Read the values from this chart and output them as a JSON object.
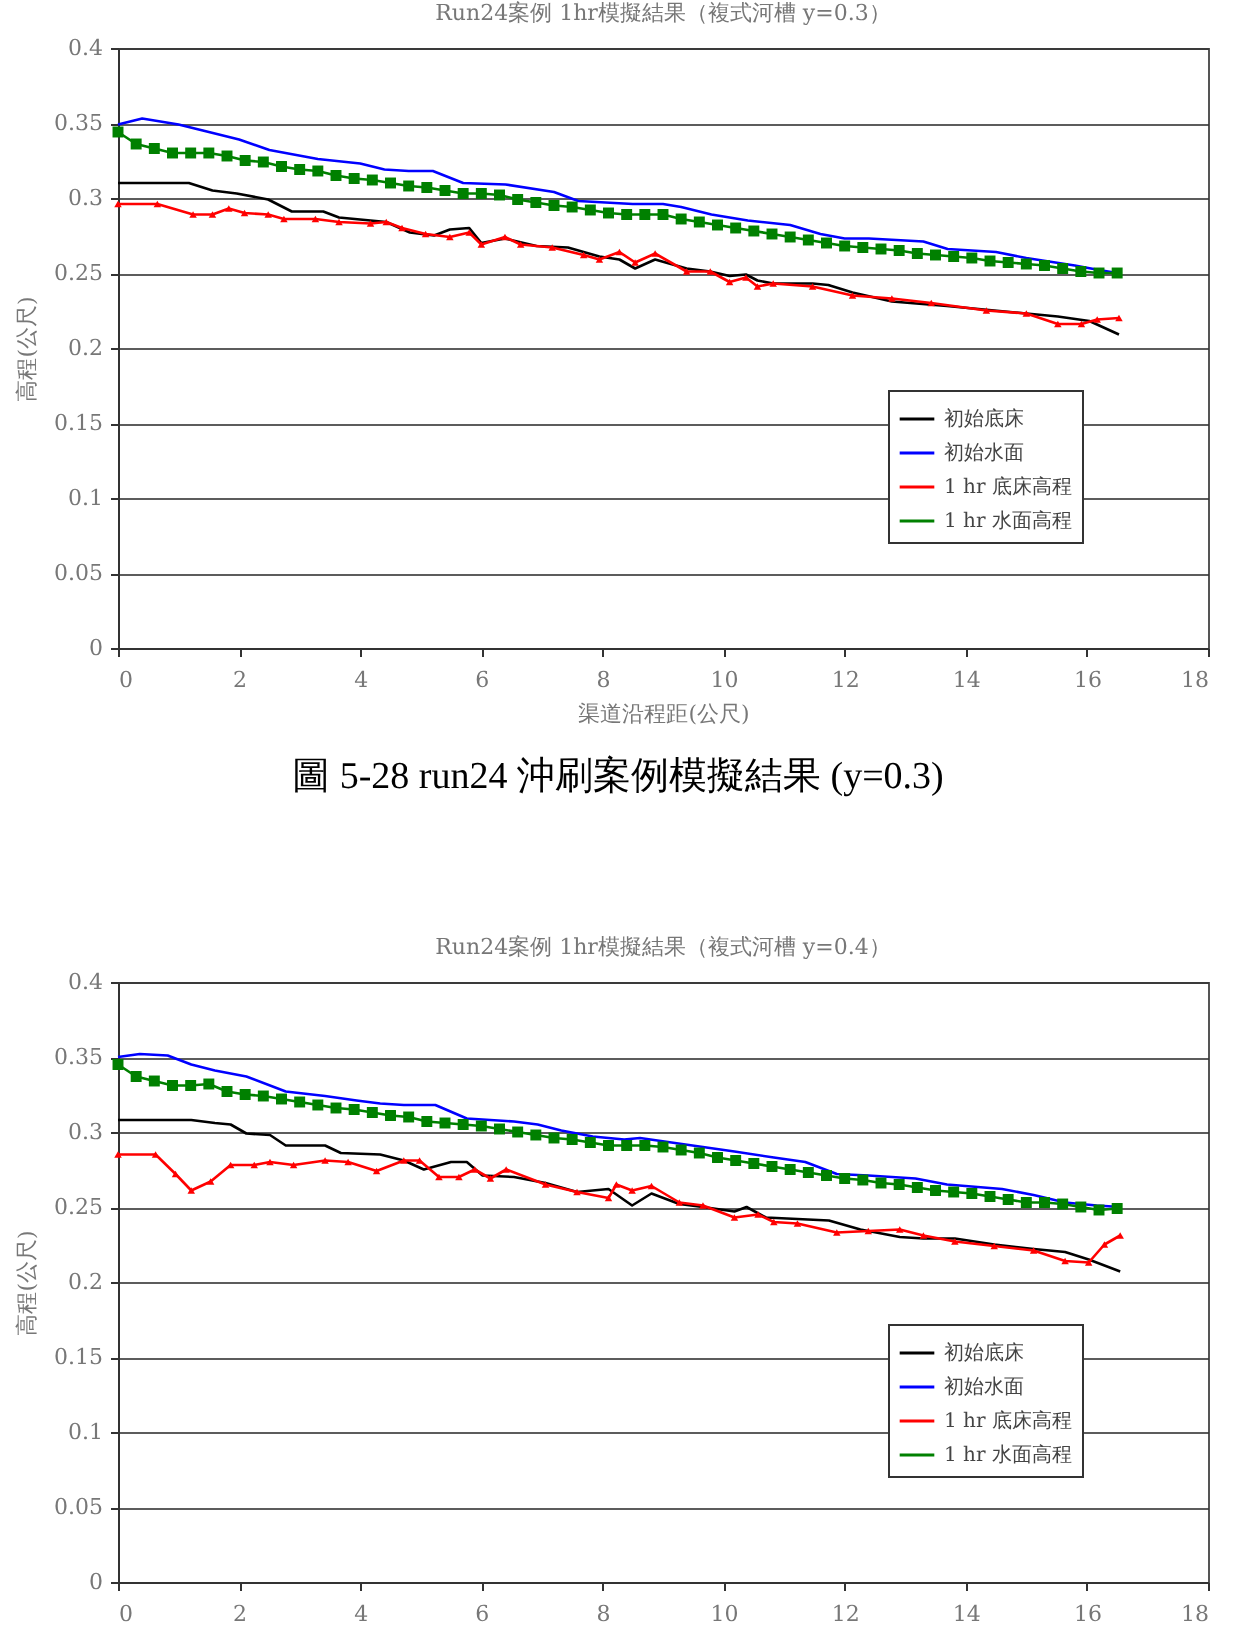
{
  "chart_data": [
    {
      "type": "line",
      "title": "Run24案例 1hr模擬結果（複式河槽 y=0.3）",
      "xlabel": "渠道沿程距(公尺)",
      "ylabel": "高程(公尺)",
      "annotations": [
        "圖 5-28 run24 沖刷案例模擬結果 (y=0.3)"
      ],
      "xlim": [
        0,
        18
      ],
      "xticks": [
        0,
        2,
        4,
        6,
        8,
        10,
        12,
        14,
        16,
        18
      ],
      "ylim": [
        0,
        0.4
      ],
      "yticks": [
        0,
        0.05,
        0.1,
        0.15,
        0.2,
        0.25,
        0.3,
        0.35,
        0.4
      ],
      "grid": "y",
      "legend": "bottom right",
      "series": [
        {
          "name": "初始底床",
          "color": "#000000",
          "marker": "none",
          "x": [
            0,
            1.17,
            1.56,
            1.96,
            2.48,
            2.87,
            3.39,
            3.65,
            4.17,
            4.43,
            4.82,
            5.22,
            5.48,
            5.8,
            6.0,
            6.39,
            6.91,
            7.43,
            7.95,
            8.28,
            8.54,
            8.87,
            9.39,
            9.78,
            10.1,
            10.37,
            10.56,
            10.82,
            11.47,
            11.73,
            12.13,
            12.78,
            13.69,
            14.47,
            15.0,
            15.52,
            16.04,
            16.53
          ],
          "values": [
            0.31,
            0.31,
            0.305,
            0.303,
            0.299,
            0.291,
            0.291,
            0.287,
            0.285,
            0.284,
            0.277,
            0.275,
            0.279,
            0.28,
            0.27,
            0.273,
            0.268,
            0.267,
            0.261,
            0.259,
            0.253,
            0.259,
            0.253,
            0.251,
            0.248,
            0.249,
            0.245,
            0.243,
            0.243,
            0.242,
            0.237,
            0.231,
            0.228,
            0.225,
            0.223,
            0.221,
            0.218,
            0.209
          ]
        },
        {
          "name": "初始水面",
          "color": "#0000ff",
          "marker": "none",
          "x": [
            0,
            0.4,
            1.0,
            1.4,
            2.0,
            2.5,
            3.3,
            4.0,
            4.4,
            4.8,
            5.2,
            5.7,
            6.4,
            7.2,
            7.6,
            8.5,
            9.0,
            9.3,
            9.8,
            10.4,
            11.1,
            11.6,
            12.0,
            12.4,
            13.3,
            13.7,
            14.5,
            15.0,
            15.8,
            16.2,
            16.5
          ],
          "values": [
            0.349,
            0.353,
            0.349,
            0.345,
            0.339,
            0.332,
            0.326,
            0.323,
            0.319,
            0.318,
            0.318,
            0.31,
            0.309,
            0.304,
            0.298,
            0.296,
            0.296,
            0.294,
            0.289,
            0.285,
            0.282,
            0.276,
            0.273,
            0.273,
            0.271,
            0.266,
            0.264,
            0.26,
            0.255,
            0.252,
            0.25
          ]
        },
        {
          "name": "1 hr 底床高程",
          "color": "#ff0000",
          "marker": "triangle",
          "x": [
            0,
            0.65,
            1.24,
            1.56,
            1.83,
            2.09,
            2.48,
            2.74,
            3.26,
            3.65,
            4.17,
            4.43,
            4.69,
            5.08,
            5.48,
            5.8,
            6.0,
            6.39,
            6.65,
            7.17,
            7.69,
            7.95,
            8.28,
            8.54,
            8.87,
            9.39,
            9.78,
            10.1,
            10.37,
            10.56,
            10.82,
            11.47,
            12.13,
            12.78,
            13.43,
            14.34,
            15.0,
            15.52,
            15.91,
            16.17,
            16.53
          ],
          "values": [
            0.296,
            0.296,
            0.289,
            0.289,
            0.293,
            0.29,
            0.289,
            0.286,
            0.286,
            0.284,
            0.283,
            0.284,
            0.28,
            0.276,
            0.274,
            0.277,
            0.269,
            0.274,
            0.269,
            0.267,
            0.262,
            0.259,
            0.264,
            0.257,
            0.263,
            0.251,
            0.251,
            0.244,
            0.247,
            0.241,
            0.243,
            0.241,
            0.235,
            0.233,
            0.23,
            0.225,
            0.223,
            0.216,
            0.216,
            0.219,
            0.22
          ]
        },
        {
          "name": "1 hr 水面高程",
          "color": "#008000",
          "marker": "square",
          "x": [
            0,
            0.3,
            0.6,
            0.9,
            1.2,
            1.5,
            1.8,
            2.1,
            2.4,
            2.7,
            3.0,
            3.3,
            3.6,
            3.9,
            4.2,
            4.5,
            4.8,
            5.1,
            5.4,
            5.7,
            6.0,
            6.3,
            6.6,
            6.9,
            7.2,
            7.5,
            7.8,
            8.1,
            8.4,
            8.7,
            9.0,
            9.3,
            9.6,
            9.9,
            10.2,
            10.5,
            10.8,
            11.1,
            11.4,
            11.7,
            12.0,
            12.3,
            12.6,
            12.9,
            13.2,
            13.5,
            13.8,
            14.1,
            14.4,
            14.7,
            15.0,
            15.3,
            15.6,
            15.9,
            16.2,
            16.5
          ],
          "values": [
            0.344,
            0.336,
            0.333,
            0.33,
            0.33,
            0.33,
            0.328,
            0.325,
            0.324,
            0.321,
            0.319,
            0.318,
            0.315,
            0.313,
            0.312,
            0.31,
            0.308,
            0.307,
            0.305,
            0.303,
            0.303,
            0.302,
            0.299,
            0.297,
            0.295,
            0.294,
            0.292,
            0.29,
            0.289,
            0.289,
            0.289,
            0.286,
            0.284,
            0.282,
            0.28,
            0.278,
            0.276,
            0.274,
            0.272,
            0.27,
            0.268,
            0.267,
            0.266,
            0.265,
            0.263,
            0.262,
            0.261,
            0.26,
            0.258,
            0.257,
            0.256,
            0.255,
            0.253,
            0.251,
            0.25,
            0.25
          ]
        }
      ]
    },
    {
      "type": "line",
      "title": "Run24案例 1hr模擬結果（複式河槽 y=0.4）",
      "ylabel": "高程(公尺)",
      "xlim": [
        0,
        18
      ],
      "xticks": [
        0,
        2,
        4,
        6,
        8,
        10,
        12,
        14,
        16,
        18
      ],
      "ylim": [
        0,
        0.4
      ],
      "yticks": [
        0,
        0.05,
        0.1,
        0.15,
        0.2,
        0.25,
        0.3,
        0.35,
        0.4
      ],
      "grid": "y",
      "legend": "bottom right",
      "series": [
        {
          "name": "初始底床",
          "color": "#000000",
          "marker": "none",
          "x": [
            0,
            1.21,
            1.6,
            1.86,
            2.12,
            2.51,
            2.77,
            3.42,
            3.68,
            4.33,
            4.72,
            5.05,
            5.5,
            5.76,
            6.02,
            6.54,
            7.06,
            7.58,
            8.1,
            8.49,
            8.81,
            9.27,
            9.66,
            10.18,
            10.38,
            10.7,
            11.22,
            11.74,
            12.26,
            12.91,
            13.3,
            13.82,
            14.47,
            15.12,
            15.64,
            16.03,
            16.55
          ],
          "values": [
            0.308,
            0.308,
            0.306,
            0.305,
            0.299,
            0.298,
            0.291,
            0.291,
            0.286,
            0.285,
            0.281,
            0.275,
            0.28,
            0.28,
            0.271,
            0.27,
            0.266,
            0.26,
            0.262,
            0.251,
            0.259,
            0.252,
            0.25,
            0.247,
            0.25,
            0.243,
            0.242,
            0.241,
            0.235,
            0.23,
            0.229,
            0.229,
            0.225,
            0.222,
            0.22,
            0.215,
            0.207
          ]
        },
        {
          "name": "初始水面",
          "color": "#0000ff",
          "marker": "none",
          "x": [
            0,
            0.36,
            0.82,
            1.21,
            1.6,
            2.12,
            2.77,
            3.42,
            3.94,
            4.33,
            4.72,
            5.24,
            5.76,
            6.54,
            6.93,
            7.32,
            7.84,
            8.36,
            8.62,
            9.14,
            9.66,
            10.18,
            10.83,
            11.35,
            11.87,
            12.39,
            13.17,
            13.69,
            14.6,
            15.12,
            15.64,
            16.16,
            16.55
          ],
          "values": [
            0.35,
            0.352,
            0.351,
            0.345,
            0.341,
            0.337,
            0.327,
            0.324,
            0.321,
            0.319,
            0.318,
            0.318,
            0.309,
            0.307,
            0.305,
            0.301,
            0.297,
            0.295,
            0.296,
            0.293,
            0.29,
            0.287,
            0.283,
            0.28,
            0.272,
            0.271,
            0.269,
            0.265,
            0.262,
            0.258,
            0.253,
            0.251,
            0.25
          ]
        },
        {
          "name": "1 hr 底床高程",
          "color": "#ff0000",
          "marker": "triangle",
          "x": [
            0,
            0.62,
            0.95,
            1.21,
            1.53,
            1.86,
            2.25,
            2.51,
            2.9,
            3.42,
            3.8,
            4.27,
            4.72,
            4.98,
            5.3,
            5.63,
            5.89,
            6.15,
            6.41,
            7.06,
            7.58,
            8.1,
            8.23,
            8.49,
            8.81,
            9.27,
            9.66,
            10.18,
            10.57,
            10.83,
            11.22,
            11.87,
            12.39,
            12.91,
            13.3,
            13.82,
            14.47,
            15.12,
            15.64,
            16.03,
            16.29,
            16.55
          ],
          "values": [
            0.285,
            0.285,
            0.272,
            0.261,
            0.267,
            0.278,
            0.278,
            0.28,
            0.278,
            0.281,
            0.28,
            0.274,
            0.281,
            0.281,
            0.27,
            0.27,
            0.275,
            0.269,
            0.275,
            0.265,
            0.26,
            0.256,
            0.265,
            0.261,
            0.264,
            0.253,
            0.251,
            0.243,
            0.245,
            0.24,
            0.239,
            0.233,
            0.234,
            0.235,
            0.231,
            0.227,
            0.224,
            0.221,
            0.214,
            0.213,
            0.225,
            0.231
          ]
        },
        {
          "name": "1 hr 水面高程",
          "color": "#008000",
          "marker": "square",
          "x": [
            0,
            0.3,
            0.6,
            0.9,
            1.2,
            1.5,
            1.8,
            2.1,
            2.4,
            2.7,
            3.0,
            3.3,
            3.6,
            3.9,
            4.2,
            4.5,
            4.8,
            5.1,
            5.4,
            5.7,
            6.0,
            6.3,
            6.6,
            6.9,
            7.2,
            7.5,
            7.8,
            8.1,
            8.4,
            8.7,
            9.0,
            9.3,
            9.6,
            9.9,
            10.2,
            10.5,
            10.8,
            11.1,
            11.4,
            11.7,
            12.0,
            12.3,
            12.6,
            12.9,
            13.2,
            13.5,
            13.8,
            14.1,
            14.4,
            14.7,
            15.0,
            15.3,
            15.6,
            15.9,
            16.2,
            16.5
          ],
          "values": [
            0.345,
            0.337,
            0.334,
            0.331,
            0.331,
            0.332,
            0.327,
            0.325,
            0.324,
            0.322,
            0.32,
            0.318,
            0.316,
            0.315,
            0.313,
            0.311,
            0.31,
            0.307,
            0.306,
            0.305,
            0.304,
            0.302,
            0.3,
            0.298,
            0.296,
            0.295,
            0.293,
            0.291,
            0.291,
            0.291,
            0.29,
            0.288,
            0.286,
            0.283,
            0.281,
            0.279,
            0.277,
            0.275,
            0.273,
            0.271,
            0.269,
            0.268,
            0.266,
            0.265,
            0.263,
            0.261,
            0.26,
            0.259,
            0.257,
            0.255,
            0.253,
            0.253,
            0.252,
            0.25,
            0.248,
            0.249
          ]
        }
      ]
    }
  ]
}
